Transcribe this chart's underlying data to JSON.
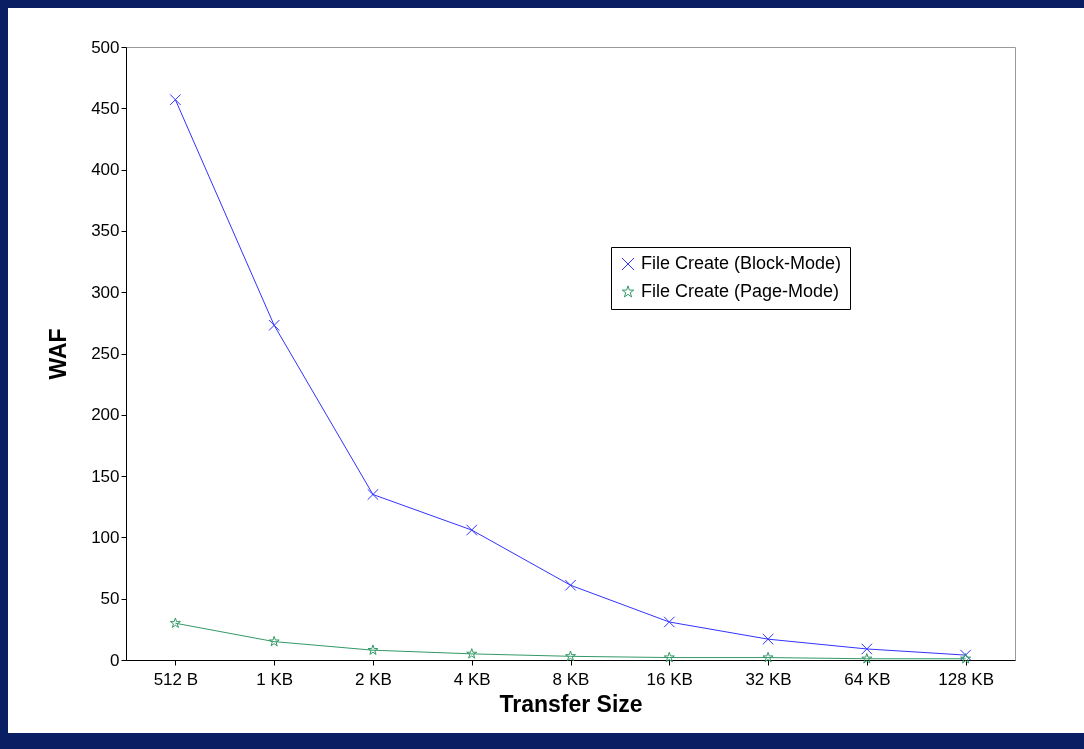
{
  "chart_data": {
    "type": "line",
    "xlabel": "Transfer Size",
    "ylabel": "WAF",
    "categories": [
      "512 B",
      "1 KB",
      "2 KB",
      "4 KB",
      "8 KB",
      "16 KB",
      "32 KB",
      "64 KB",
      "128 KB"
    ],
    "series": [
      {
        "name": "File Create (Block-Mode)",
        "color": "#3333ff",
        "marker": "cross",
        "values": [
          457,
          273,
          135,
          106,
          61,
          31,
          17,
          9,
          4
        ]
      },
      {
        "name": "File Create (Page-Mode)",
        "color": "#339966",
        "marker": "star",
        "values": [
          30,
          15,
          8,
          5,
          3,
          2,
          2,
          1,
          1
        ]
      }
    ],
    "ylim": [
      0,
      500
    ],
    "yticks": [
      0,
      50,
      100,
      150,
      200,
      250,
      300,
      350,
      400,
      450,
      500
    ],
    "legend": "right",
    "line_style": "solid"
  }
}
